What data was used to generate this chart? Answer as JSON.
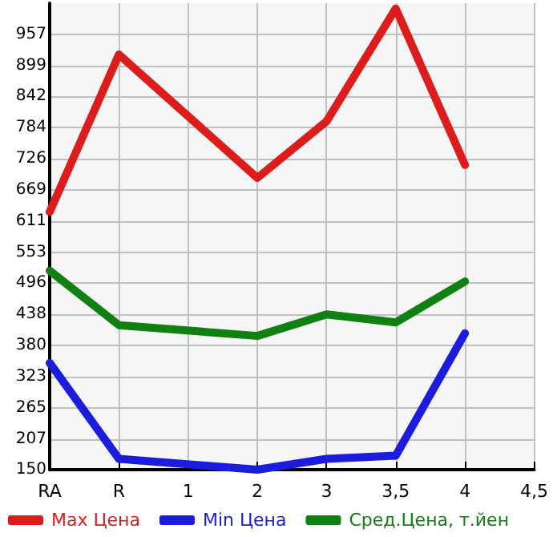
{
  "chart_data": {
    "type": "line",
    "categories": [
      "RA",
      "R",
      "1",
      "2",
      "3",
      "3,5",
      "4",
      "4,5"
    ],
    "series": [
      {
        "name": "Max Цена",
        "color": "#dd1c1c",
        "values": [
          628,
          920,
          null,
          691,
          796,
          1005,
          715,
          null
        ]
      },
      {
        "name": "Min Цена",
        "color": "#1c1cdd",
        "values": [
          348,
          170,
          null,
          150,
          170,
          176,
          403,
          null
        ]
      },
      {
        "name": "Сред.Цена, т.йен",
        "color": "#108010",
        "values": [
          519,
          418,
          null,
          398,
          438,
          423,
          499,
          null
        ]
      }
    ],
    "ylim": [
      150,
      1015
    ],
    "yticks": [
      150,
      207,
      265,
      323,
      380,
      438,
      496,
      553,
      611,
      669,
      726,
      784,
      842,
      899,
      957
    ],
    "grid": true,
    "legend": "bottom",
    "marker": "none",
    "line_style": "solid"
  }
}
